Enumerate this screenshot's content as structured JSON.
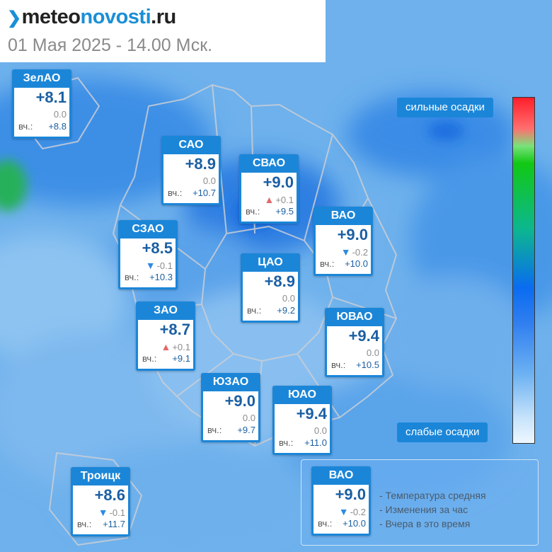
{
  "header": {
    "logo_prefix": "meteo",
    "logo_bold": "novosti",
    "logo_suffix": ".ru",
    "date": "01 Мая 2025 - 14.00 Мск."
  },
  "districts": [
    {
      "name": "ЗелАО",
      "temp": "+8.1",
      "change": "0.0",
      "trend": "none",
      "yesterday_label": "вч.:",
      "yesterday": "+8.8"
    },
    {
      "name": "САО",
      "temp": "+8.9",
      "change": "0.0",
      "trend": "none",
      "yesterday_label": "вч.:",
      "yesterday": "+10.7"
    },
    {
      "name": "СВАО",
      "temp": "+9.0",
      "change": "+0.1",
      "trend": "up",
      "yesterday_label": "вч.:",
      "yesterday": "+9.5"
    },
    {
      "name": "ВАО",
      "temp": "+9.0",
      "change": "-0.2",
      "trend": "down",
      "yesterday_label": "вч.:",
      "yesterday": "+10.0"
    },
    {
      "name": "СЗАО",
      "temp": "+8.5",
      "change": "-0.1",
      "trend": "down",
      "yesterday_label": "вч.:",
      "yesterday": "+10.3"
    },
    {
      "name": "ЦАО",
      "temp": "+8.9",
      "change": "0.0",
      "trend": "none",
      "yesterday_label": "вч.:",
      "yesterday": "+9.2"
    },
    {
      "name": "ЗАО",
      "temp": "+8.7",
      "change": "+0.1",
      "trend": "up",
      "yesterday_label": "вч.:",
      "yesterday": "+9.1"
    },
    {
      "name": "ЮВАО",
      "temp": "+9.4",
      "change": "0.0",
      "trend": "none",
      "yesterday_label": "вч.:",
      "yesterday": "+10.5"
    },
    {
      "name": "ЮЗАО",
      "temp": "+9.0",
      "change": "0.0",
      "trend": "none",
      "yesterday_label": "вч.:",
      "yesterday": "+9.7"
    },
    {
      "name": "ЮАО",
      "temp": "+9.4",
      "change": "0.0",
      "trend": "none",
      "yesterday_label": "вч.:",
      "yesterday": "+11.0"
    },
    {
      "name": "Троицк",
      "temp": "+8.6",
      "change": "-0.1",
      "trend": "down",
      "yesterday_label": "вч.:",
      "yesterday": "+11.7"
    }
  ],
  "scale": {
    "top_label": "сильные осадки",
    "bottom_label": "слабые осадки"
  },
  "legend": {
    "sample": {
      "name": "ВАО",
      "temp": "+9.0",
      "change": "-0.2",
      "trend": "down",
      "yesterday_label": "вч.:",
      "yesterday": "+10.0"
    },
    "line1": "- Температура средняя",
    "line2": "- Изменения за час",
    "line3": "- Вчера в это время"
  },
  "colors": {
    "card_blue": "#1b86d8",
    "temp_text": "#1b5fa3",
    "trend_up": "#e06a6a",
    "trend_down": "#2d8ce0"
  }
}
